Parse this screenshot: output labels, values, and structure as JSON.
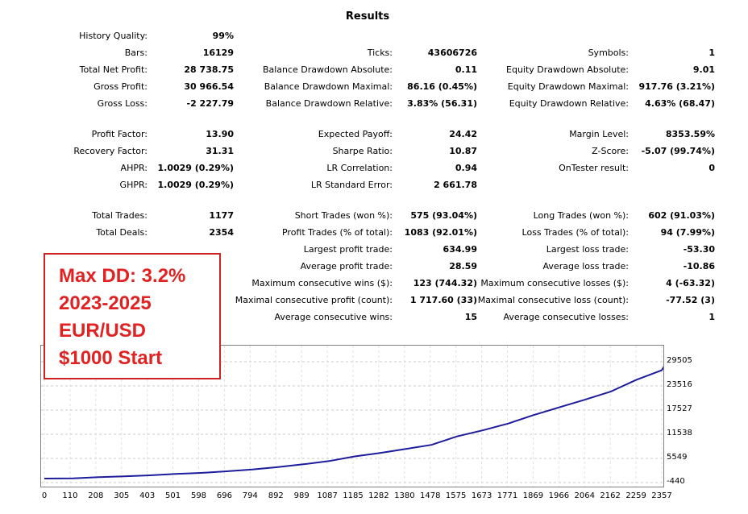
{
  "title": "Results",
  "stats": {
    "history_quality": {
      "label": "History Quality:",
      "value": "99%"
    },
    "bars": {
      "label": "Bars:",
      "value": "16129"
    },
    "ticks": {
      "label": "Ticks:",
      "value": "43606726"
    },
    "symbols": {
      "label": "Symbols:",
      "value": "1"
    },
    "total_net_profit": {
      "label": "Total Net Profit:",
      "value": "28 738.75"
    },
    "balance_dd_abs": {
      "label": "Balance Drawdown Absolute:",
      "value": "0.11"
    },
    "equity_dd_abs": {
      "label": "Equity Drawdown Absolute:",
      "value": "9.01"
    },
    "gross_profit": {
      "label": "Gross Profit:",
      "value": "30 966.54"
    },
    "balance_dd_max": {
      "label": "Balance Drawdown Maximal:",
      "value": "86.16 (0.45%)"
    },
    "equity_dd_max": {
      "label": "Equity Drawdown Maximal:",
      "value": "917.76 (3.21%)"
    },
    "gross_loss": {
      "label": "Gross Loss:",
      "value": "-2 227.79"
    },
    "balance_dd_rel": {
      "label": "Balance Drawdown Relative:",
      "value": "3.83% (56.31)"
    },
    "equity_dd_rel": {
      "label": "Equity Drawdown Relative:",
      "value": "4.63% (68.47)"
    },
    "profit_factor": {
      "label": "Profit Factor:",
      "value": "13.90"
    },
    "expected_payoff": {
      "label": "Expected Payoff:",
      "value": "24.42"
    },
    "margin_level": {
      "label": "Margin Level:",
      "value": "8353.59%"
    },
    "recovery_factor": {
      "label": "Recovery Factor:",
      "value": "31.31"
    },
    "sharpe_ratio": {
      "label": "Sharpe Ratio:",
      "value": "10.87"
    },
    "z_score": {
      "label": "Z-Score:",
      "value": "-5.07 (99.74%)"
    },
    "ahpr": {
      "label": "AHPR:",
      "value": "1.0029 (0.29%)"
    },
    "lr_correlation": {
      "label": "LR Correlation:",
      "value": "0.94"
    },
    "ontester": {
      "label": "OnTester result:",
      "value": "0"
    },
    "ghpr": {
      "label": "GHPR:",
      "value": "1.0029 (0.29%)"
    },
    "lr_std_error": {
      "label": "LR Standard Error:",
      "value": "2 661.78"
    },
    "total_trades": {
      "label": "Total Trades:",
      "value": "1177"
    },
    "short_trades": {
      "label": "Short Trades (won %):",
      "value": "575 (93.04%)"
    },
    "long_trades": {
      "label": "Long Trades (won %):",
      "value": "602 (91.03%)"
    },
    "total_deals": {
      "label": "Total Deals:",
      "value": "2354"
    },
    "profit_trades": {
      "label": "Profit Trades (% of total):",
      "value": "1083 (92.01%)"
    },
    "loss_trades": {
      "label": "Loss Trades (% of total):",
      "value": "94 (7.99%)"
    },
    "largest_profit": {
      "label": "Largest profit trade:",
      "value": "634.99"
    },
    "largest_loss": {
      "label": "Largest loss trade:",
      "value": "-53.30"
    },
    "avg_profit": {
      "label": "Average profit trade:",
      "value": "28.59"
    },
    "avg_loss": {
      "label": "Average loss trade:",
      "value": "-10.86"
    },
    "max_cons_wins": {
      "label": "Maximum consecutive wins ($):",
      "value": "123 (744.32)"
    },
    "max_cons_losses": {
      "label": "Maximum consecutive losses ($):",
      "value": "4 (-63.32)"
    },
    "maxl_cons_profit": {
      "label": "Maximal consecutive profit (count):",
      "value": "1 717.60 (33)"
    },
    "maxl_cons_loss": {
      "label": "Maximal consecutive loss (count):",
      "value": "-77.52 (3)"
    },
    "avg_cons_wins": {
      "label": "Average consecutive wins:",
      "value": "15"
    },
    "avg_cons_losses": {
      "label": "Average consecutive losses:",
      "value": "1"
    }
  },
  "annotation": {
    "line1": "Max DD: 3.2%",
    "line2": "2023-2025",
    "line3": "EUR/USD",
    "line4": "$1000 Start"
  },
  "chart_data": {
    "type": "line",
    "y_ticks": [
      "29505",
      "23516",
      "17527",
      "11538",
      "5549",
      "-440"
    ],
    "x_ticks": [
      "0",
      "110",
      "208",
      "305",
      "403",
      "501",
      "598",
      "696",
      "794",
      "892",
      "989",
      "1087",
      "1185",
      "1282",
      "1380",
      "1478",
      "1575",
      "1673",
      "1771",
      "1869",
      "1966",
      "2064",
      "2162",
      "2259",
      "2357"
    ],
    "ylim": [
      -440,
      30500
    ],
    "xlim": [
      0,
      2400
    ],
    "line_color": "#1c1c9c",
    "series": [
      {
        "x": [
          0,
          110,
          208,
          305,
          403,
          501,
          598,
          696,
          794,
          892,
          989,
          1087,
          1185,
          1282,
          1380,
          1478,
          1575,
          1673,
          1771,
          1869,
          1966,
          2064,
          2162,
          2259,
          2357,
          2380
        ],
        "values": [
          560,
          620,
          890,
          1100,
          1350,
          1700,
          1950,
          2350,
          2800,
          3400,
          4100,
          4900,
          6050,
          6900,
          7900,
          8900,
          11000,
          12500,
          14200,
          16300,
          18200,
          20100,
          22100,
          25000,
          27400,
          29800
        ]
      }
    ]
  }
}
